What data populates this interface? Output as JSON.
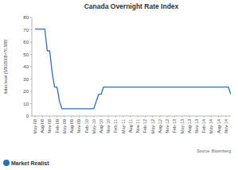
{
  "chart_data": {
    "type": "line",
    "title": "Canada Overnight Rate Index",
    "y_label": "Index level (5/30/2008=70.588)",
    "source": "Source: Bloomberg",
    "brand": "Market Realist",
    "color": "#2f6db5",
    "grid": false,
    "ylim": [
      0,
      80
    ],
    "yticks": [
      0,
      10,
      20,
      30,
      40,
      50,
      60,
      70,
      80
    ],
    "categories": [
      "May-08",
      null,
      null,
      "Aug-08",
      null,
      null,
      "Nov-08",
      null,
      null,
      "Feb-09",
      null,
      null,
      "May-09",
      null,
      null,
      "Aug-09",
      null,
      null,
      "Nov-09",
      null,
      null,
      "Feb-10",
      null,
      null,
      "May-10",
      null,
      null,
      "Aug-10",
      null,
      null,
      "Nov-10",
      null,
      null,
      "Feb-11",
      null,
      null,
      "May-11",
      null,
      null,
      "Aug-11",
      null,
      null,
      "Nov-11",
      null,
      null,
      "Feb-12",
      null,
      null,
      "May-12",
      null,
      null,
      "Aug-12",
      null,
      null,
      "Nov-12",
      null,
      null,
      "Feb-13",
      null,
      null,
      "May-13",
      null,
      null,
      "Aug-13",
      null,
      null,
      "Nov-13",
      null,
      null,
      "Feb-14",
      null,
      null,
      "May-14",
      null,
      null,
      "Aug-14",
      null,
      null,
      "Nov-14",
      null,
      null
    ],
    "values": [
      70.6,
      70.6,
      70.6,
      70.6,
      70.6,
      52.9,
      52.9,
      35.3,
      23.5,
      23.5,
      11.8,
      5.9,
      5.9,
      5.9,
      5.9,
      5.9,
      5.9,
      5.9,
      5.9,
      5.9,
      5.9,
      5.9,
      5.9,
      5.9,
      5.9,
      11.8,
      17.6,
      17.6,
      23.5,
      23.5,
      23.5,
      23.5,
      23.5,
      23.5,
      23.5,
      23.5,
      23.5,
      23.5,
      23.5,
      23.5,
      23.5,
      23.5,
      23.5,
      23.5,
      23.5,
      23.5,
      23.5,
      23.5,
      23.5,
      23.5,
      23.5,
      23.5,
      23.5,
      23.5,
      23.5,
      23.5,
      23.5,
      23.5,
      23.5,
      23.5,
      23.5,
      23.5,
      23.5,
      23.5,
      23.5,
      23.5,
      23.5,
      23.5,
      23.5,
      23.5,
      23.5,
      23.5,
      23.5,
      23.5,
      23.5,
      23.5,
      23.5,
      23.5,
      23.5,
      23.5,
      17.6
    ]
  }
}
